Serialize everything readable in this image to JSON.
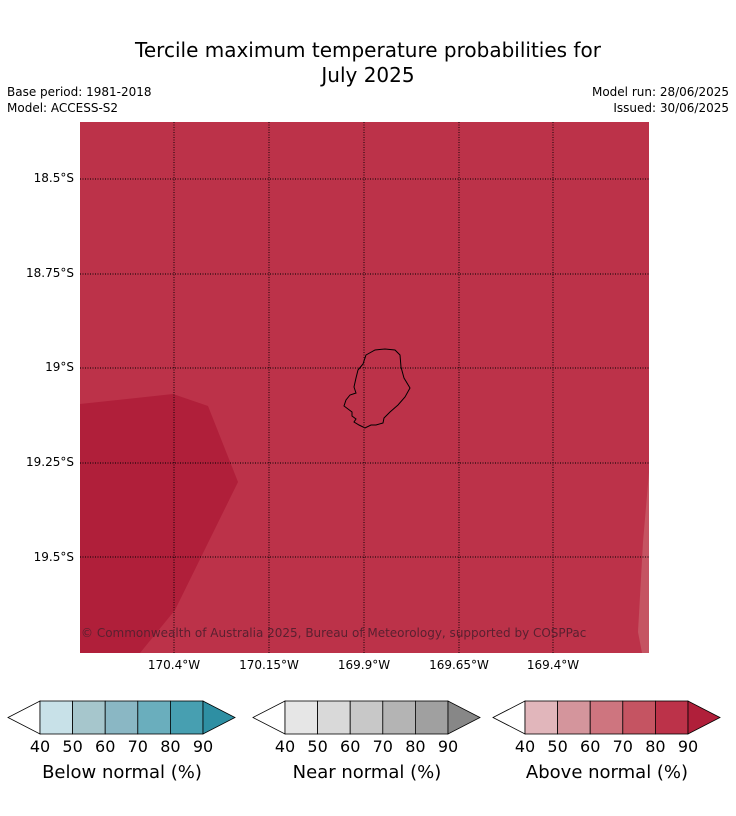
{
  "title": {
    "line1": "Tercile maximum temperature probabilities for",
    "line2": "July 2025"
  },
  "meta": {
    "base_period": "Base period: 1981-2018",
    "model": "Model: ACCESS-S2",
    "model_run": "Model run: 28/06/2025",
    "issued": "Issued: 30/06/2025"
  },
  "map": {
    "latitudes": [
      "18.5°S",
      "18.75°S",
      "19°S",
      "19.25°S",
      "19.5°S"
    ],
    "longitudes": [
      "170.4°W",
      "170.15°W",
      "169.9°W",
      "169.65°W",
      "169.4°W"
    ],
    "copyright": "© Commonwealth of Australia 2025, Bureau of Meteorology, supported by COSPPac",
    "field_category": "Above normal",
    "field_probability_band": "80-90",
    "colors": {
      "field_80_90": "#bc3249",
      "field_90_plus": "#b01f3a",
      "field_70_80": "#c55462"
    }
  },
  "legends": [
    {
      "label": "Below normal (%)",
      "ticks": [
        "40",
        "50",
        "60",
        "70",
        "80",
        "90"
      ],
      "colors": [
        "#ffffff",
        "#c8e1e8",
        "#a6c6cc",
        "#8ab7c4",
        "#6aaebd",
        "#479fb1",
        "#2e8fa3"
      ]
    },
    {
      "label": "Near normal (%)",
      "ticks": [
        "40",
        "50",
        "60",
        "70",
        "80",
        "90"
      ],
      "colors": [
        "#ffffff",
        "#e6e6e6",
        "#d9d9d9",
        "#c8c8c8",
        "#b4b4b4",
        "#a0a0a0",
        "#878787"
      ]
    },
    {
      "label": "Above normal (%)",
      "ticks": [
        "40",
        "50",
        "60",
        "70",
        "80",
        "90"
      ],
      "colors": [
        "#ffffff",
        "#e1b6bb",
        "#d4959c",
        "#ce757f",
        "#c55462",
        "#bc3249",
        "#b01f3a"
      ]
    }
  ]
}
